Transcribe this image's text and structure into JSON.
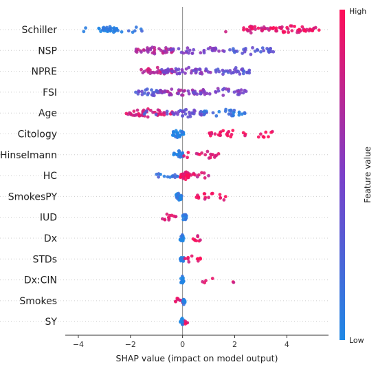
{
  "chart_data": {
    "type": "scatter",
    "subtype": "shap-beeswarm",
    "xlabel": "SHAP value (impact on model output)",
    "xlim": [
      -4.5,
      5.6
    ],
    "xticks": [
      -4,
      -2,
      0,
      2,
      4
    ],
    "grid": false,
    "colorbar": {
      "title": "Feature value",
      "high_label": "High",
      "low_label": "Low",
      "low_color": "#1e88e5",
      "high_color": "#ff0d57"
    },
    "features": [
      {
        "name": "Schiller",
        "clusters": [
          [
            -4.0,
            -2.8,
            0.0,
            6
          ],
          [
            -3.2,
            -2.5,
            0.05,
            30
          ],
          [
            -2.8,
            -1.3,
            0.1,
            10
          ],
          [
            2.2,
            3.4,
            0.85,
            28
          ],
          [
            3.4,
            5.0,
            0.9,
            45
          ],
          [
            5.0,
            5.4,
            0.95,
            4
          ],
          [
            1.6,
            1.8,
            0.9,
            1
          ]
        ]
      },
      {
        "name": "NSP",
        "clusters": [
          [
            -1.8,
            -0.3,
            0.7,
            40
          ],
          [
            -0.5,
            1.6,
            0.5,
            30
          ],
          [
            1.8,
            3.5,
            0.3,
            30
          ]
        ]
      },
      {
        "name": "NPRE",
        "clusters": [
          [
            -1.6,
            -0.3,
            0.8,
            30
          ],
          [
            -0.8,
            1.2,
            0.5,
            45
          ],
          [
            1.2,
            2.6,
            0.35,
            30
          ]
        ]
      },
      {
        "name": "FSI",
        "clusters": [
          [
            -1.8,
            -0.6,
            0.35,
            25
          ],
          [
            -1.0,
            0.8,
            0.6,
            40
          ],
          [
            0.4,
            2.5,
            0.5,
            35
          ],
          [
            -1.5,
            -0.9,
            0.2,
            3
          ]
        ]
      },
      {
        "name": "Age",
        "clusters": [
          [
            -2.2,
            -0.4,
            0.85,
            45
          ],
          [
            -0.6,
            1.0,
            0.4,
            35
          ],
          [
            0.6,
            2.4,
            0.15,
            30
          ],
          [
            -1.5,
            -1.0,
            0.3,
            4
          ]
        ]
      },
      {
        "name": "Citology",
        "clusters": [
          [
            -0.4,
            0.05,
            0.05,
            30
          ],
          [
            1.0,
            2.5,
            0.95,
            22
          ],
          [
            2.5,
            3.6,
            0.95,
            8
          ]
        ]
      },
      {
        "name": "Hinselmann",
        "clusters": [
          [
            -0.35,
            0.05,
            0.05,
            22
          ],
          [
            0.5,
            1.4,
            0.9,
            15
          ],
          [
            0.0,
            0.4,
            0.9,
            3
          ]
        ]
      },
      {
        "name": "HC",
        "clusters": [
          [
            -1.0,
            -0.1,
            0.15,
            14
          ],
          [
            -0.1,
            0.3,
            0.95,
            30
          ],
          [
            0.3,
            1.0,
            0.85,
            10
          ]
        ]
      },
      {
        "name": "SmokesPY",
        "clusters": [
          [
            -0.25,
            0.0,
            0.05,
            22
          ],
          [
            0.5,
            1.5,
            0.9,
            14
          ],
          [
            1.5,
            1.7,
            0.9,
            2
          ]
        ]
      },
      {
        "name": "IUD",
        "clusters": [
          [
            -0.8,
            -0.2,
            0.9,
            12
          ],
          [
            0.0,
            0.15,
            0.05,
            14
          ]
        ]
      },
      {
        "name": "Dx",
        "clusters": [
          [
            -0.1,
            0.05,
            0.05,
            14
          ],
          [
            0.4,
            0.95,
            0.9,
            8
          ]
        ]
      },
      {
        "name": "STDs",
        "clusters": [
          [
            -0.1,
            0.05,
            0.05,
            14
          ],
          [
            0.05,
            0.7,
            0.9,
            10
          ]
        ]
      },
      {
        "name": "Dx:CIN",
        "clusters": [
          [
            -0.1,
            0.05,
            0.05,
            14
          ],
          [
            0.7,
            1.2,
            0.9,
            4
          ],
          [
            1.9,
            2.0,
            0.9,
            2
          ]
        ]
      },
      {
        "name": "Smokes",
        "clusters": [
          [
            -0.3,
            0.05,
            0.9,
            10
          ],
          [
            0.0,
            0.1,
            0.05,
            12
          ]
        ]
      },
      {
        "name": "SY",
        "clusters": [
          [
            -0.1,
            0.05,
            0.05,
            14
          ],
          [
            0.05,
            0.25,
            0.9,
            4
          ]
        ]
      }
    ]
  }
}
